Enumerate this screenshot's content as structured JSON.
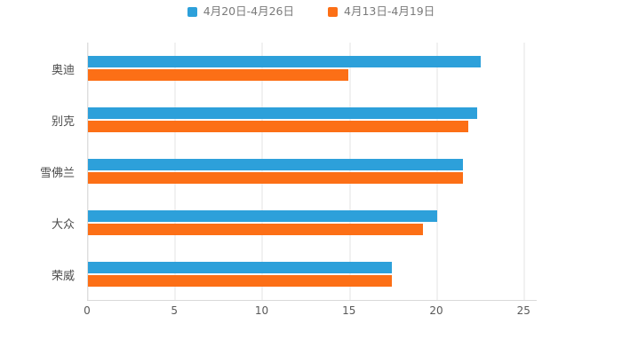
{
  "chart_data": {
    "type": "bar",
    "orientation": "horizontal",
    "title": "",
    "xlabel": "",
    "ylabel": "",
    "categories": [
      "奥迪",
      "别克",
      "雪佛兰",
      "大众",
      "荣威"
    ],
    "series": [
      {
        "name": "4月20日-4月26日",
        "color": "#2da0da",
        "values": [
          22.5,
          22.3,
          21.5,
          20.0,
          17.4
        ]
      },
      {
        "name": "4月13日-4月19日",
        "color": "#fc6f16",
        "values": [
          14.9,
          21.8,
          21.5,
          19.2,
          17.4
        ]
      }
    ],
    "xlim": [
      0,
      25.7
    ],
    "xticks": [
      0,
      5,
      10,
      15,
      20,
      25
    ],
    "grid": true,
    "legend_position": "top"
  },
  "axis": {
    "x_tick_labels": [
      "0",
      "5",
      "10",
      "15",
      "20",
      "25"
    ]
  }
}
